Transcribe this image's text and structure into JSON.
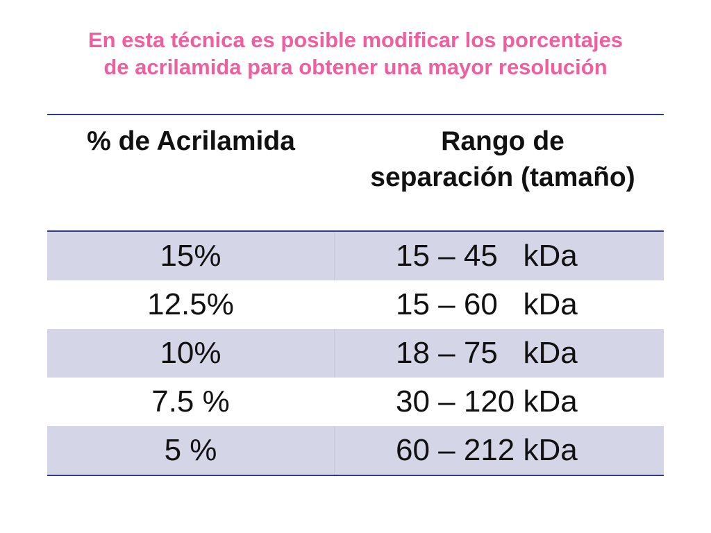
{
  "title": {
    "line1": "En esta técnica es posible modificar los porcentajes",
    "line2": "de acrilamida para obtener una mayor resolución"
  },
  "table": {
    "headers": {
      "col1": "% de Acrilamida",
      "col2_line1": "Rango de",
      "col2_line2": "separación (tamaño)"
    },
    "rows": [
      {
        "acrylamide": "15%",
        "range": "15 – 45   kDa"
      },
      {
        "acrylamide": "12.5%",
        "range": "15 – 60   kDa"
      },
      {
        "acrylamide": "10%",
        "range": "18 – 75   kDa"
      },
      {
        "acrylamide": "7.5 %",
        "range": "30 – 120 kDa"
      },
      {
        "acrylamide": "5 %",
        "range": "60 – 212 kDa"
      }
    ]
  },
  "colors": {
    "title": "#ef5fa0",
    "row_shade": "#d4d6e8",
    "rule": "#2f3b8a"
  }
}
